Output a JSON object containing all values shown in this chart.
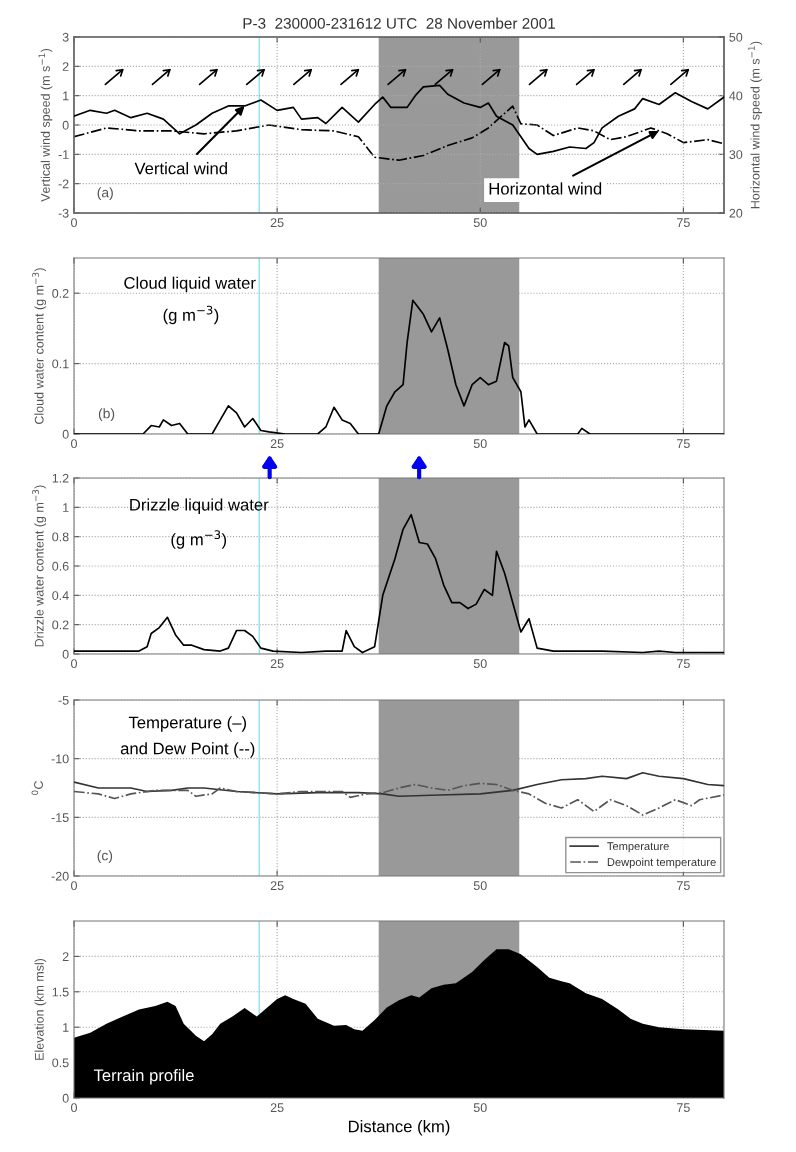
{
  "chart_data": [
    {
      "type": "line",
      "title": "P-3  230000-231612 UTC  28 November 2001",
      "ylabel": "Vertical wind speed (m s$^{−1}$)",
      "y2label": "Horizontal wind speed (m s$^{−1}$)",
      "xlim": [
        0,
        80
      ],
      "xticks": [
        0,
        25,
        50,
        75
      ],
      "ylim": [
        -3,
        3
      ],
      "yticks": [
        -3,
        -2,
        -1,
        0,
        1,
        2,
        3
      ],
      "y2lim": [
        20,
        50
      ],
      "y2ticks": [
        20,
        30,
        40,
        50
      ],
      "grid": true,
      "series": [
        {
          "color": "#000000",
          "line_style": "solid",
          "x": [
            0,
            2,
            4,
            5,
            7,
            9,
            11,
            13,
            15,
            17,
            19,
            21,
            23,
            25,
            27,
            28,
            30,
            31,
            33,
            35,
            37,
            38,
            39,
            41,
            42,
            43,
            45,
            46,
            48,
            50,
            51,
            52,
            54,
            56,
            57,
            59,
            61,
            63,
            64,
            65,
            67,
            69,
            70,
            72,
            74,
            76,
            78,
            80
          ],
          "values": [
            0.3,
            0.5,
            0.4,
            0.5,
            0.25,
            0.4,
            0.2,
            -0.3,
            0,
            0.4,
            0.65,
            0.65,
            0.85,
            0.5,
            0.6,
            0.2,
            0.25,
            0.05,
            0.6,
            0.1,
            0.7,
            0.95,
            0.6,
            0.6,
            1.0,
            1.3,
            1.35,
            1.05,
            0.75,
            0.6,
            0.75,
            0.3,
            0,
            -0.8,
            -1.0,
            -0.9,
            -0.75,
            -0.8,
            -0.6,
            -0.1,
            0.3,
            0.55,
            0.9,
            0.7,
            1.1,
            0.8,
            0.55,
            0.95
          ]
        },
        {
          "color": "#000000",
          "line_style": "dashdot",
          "axis": "y2",
          "x": [
            0,
            4,
            8,
            12,
            16,
            20,
            24,
            28,
            32,
            35,
            37,
            40,
            43,
            46,
            49,
            51,
            53,
            54,
            55,
            57,
            59,
            62,
            64,
            66,
            68,
            71,
            73,
            75,
            78,
            80
          ],
          "values": [
            33,
            34.5,
            34,
            34,
            33.5,
            34,
            35,
            34.2,
            34,
            33,
            29.5,
            29,
            29.8,
            31.5,
            32.8,
            34.5,
            37,
            38.2,
            35.2,
            35,
            33.2,
            34.5,
            34,
            32.5,
            33,
            34.5,
            33.5,
            32,
            32.5,
            31.8
          ]
        }
      ],
      "bands": [
        {
          "axis": "x",
          "from": 37.5,
          "to": 54.8,
          "color": "#999999"
        }
      ],
      "ref_lines": [
        {
          "axis": "x",
          "value": 22.8,
          "color": "#88e4f4"
        }
      ],
      "annotations": [
        {
          "text": "Vertical wind",
          "x": 21,
          "y": 0.65
        },
        {
          "text": "Horizontal wind",
          "x": 72,
          "y": -0.2
        },
        "(a)"
      ]
    },
    {
      "type": "line",
      "ylabel": "Cloud water content (g m$^{−3}$)",
      "xlim": [
        0,
        80
      ],
      "xticks": [
        0,
        25,
        50,
        75
      ],
      "ylim": [
        0,
        0.25
      ],
      "yticks": [
        0,
        0.1,
        0.2
      ],
      "grid": true,
      "series": [
        {
          "color": "#000000",
          "line_style": "solid",
          "x": [
            0,
            8.5,
            9.5,
            10.5,
            11,
            12,
            13,
            14,
            17,
            18,
            19,
            20,
            21,
            22,
            23,
            24,
            26,
            30,
            31,
            32,
            33,
            34,
            35,
            37.5,
            38.5,
            39.5,
            40.5,
            41,
            41.7,
            43,
            44,
            45,
            46,
            47,
            48,
            49,
            50,
            51,
            52,
            53,
            53.5,
            54,
            55,
            55.5,
            56,
            57,
            62,
            62.5,
            63.5,
            80
          ],
          "values": [
            0,
            0,
            0.012,
            0.01,
            0.02,
            0.012,
            0.015,
            0,
            0,
            0.02,
            0.04,
            0.03,
            0.01,
            0.022,
            0.005,
            0.003,
            0,
            0,
            0.01,
            0.038,
            0.02,
            0.015,
            0,
            0,
            0.04,
            0.06,
            0.07,
            0.13,
            0.19,
            0.17,
            0.145,
            0.165,
            0.12,
            0.07,
            0.04,
            0.07,
            0.08,
            0.07,
            0.075,
            0.13,
            0.125,
            0.08,
            0.06,
            0.01,
            0.02,
            0,
            0,
            0.008,
            0,
            0
          ]
        }
      ],
      "bands": [
        {
          "axis": "x",
          "from": 37.5,
          "to": 54.8,
          "color": "#999999"
        }
      ],
      "ref_lines": [
        {
          "axis": "x",
          "value": 22.8,
          "color": "#88e4f4"
        }
      ],
      "annotations": [
        "Cloud liquid water",
        "(g m$^{−3}$)",
        "(b)"
      ]
    },
    {
      "type": "line",
      "ylabel": "Drizzle water content (g m$^{−3}$)",
      "xlim": [
        0,
        80
      ],
      "xticks": [
        0,
        25,
        50,
        75
      ],
      "ylim": [
        0,
        1.2
      ],
      "yticks": [
        0,
        0.2,
        0.4,
        0.6,
        0.8,
        1,
        1.2
      ],
      "grid": true,
      "series": [
        {
          "color": "#000000",
          "line_style": "solid",
          "x": [
            0,
            8,
            9,
            9.5,
            10.5,
            11.5,
            12.5,
            13.5,
            14.5,
            16,
            18,
            19,
            20,
            21,
            22,
            23,
            24.5,
            28,
            31,
            33,
            33.5,
            34.5,
            35.5,
            37,
            38,
            39.5,
            40.5,
            41.5,
            42.5,
            43.5,
            44.5,
            45.5,
            46.5,
            47.5,
            48.5,
            49.5,
            50.5,
            51.5,
            52,
            53,
            54,
            55,
            56,
            57,
            59,
            65,
            70,
            72,
            74,
            80
          ],
          "values": [
            0.02,
            0.02,
            0.05,
            0.14,
            0.18,
            0.25,
            0.13,
            0.06,
            0.06,
            0.03,
            0.02,
            0.04,
            0.16,
            0.16,
            0.12,
            0.04,
            0.02,
            0.01,
            0.02,
            0.02,
            0.16,
            0.05,
            0.01,
            0.05,
            0.4,
            0.65,
            0.85,
            0.95,
            0.76,
            0.75,
            0.65,
            0.47,
            0.35,
            0.35,
            0.31,
            0.34,
            0.44,
            0.4,
            0.7,
            0.55,
            0.35,
            0.15,
            0.24,
            0.04,
            0.02,
            0.02,
            0.01,
            0.02,
            0.01,
            0.01
          ]
        }
      ],
      "bands": [
        {
          "axis": "x",
          "from": 37.5,
          "to": 54.8,
          "color": "#999999"
        }
      ],
      "ref_lines": [
        {
          "axis": "x",
          "value": 22.8,
          "color": "#88e4f4"
        }
      ],
      "annotations": [
        "Drizzle liquid water",
        "(g m$^{−3}$)"
      ]
    },
    {
      "type": "line",
      "ylabel": "$^{0}$C",
      "xlim": [
        0,
        80
      ],
      "xticks": [
        0,
        25,
        50,
        75
      ],
      "ylim": [
        -20,
        -5
      ],
      "yticks": [
        -20,
        -15,
        -10,
        -5
      ],
      "grid": true,
      "legend": "lower right",
      "series": [
        {
          "name": "Temperature",
          "color": "#333333",
          "line_style": "solid",
          "x": [
            0,
            3,
            7,
            9,
            12,
            14,
            16,
            20,
            25,
            30,
            35,
            38,
            40,
            45,
            50,
            54,
            57,
            60,
            63,
            65,
            68,
            70,
            72,
            75,
            78,
            80
          ],
          "values": [
            -12,
            -12.5,
            -12.5,
            -12.8,
            -12.7,
            -12.5,
            -12.5,
            -12.8,
            -13,
            -12.9,
            -12.9,
            -13,
            -13.2,
            -13.1,
            -13,
            -12.7,
            -12.2,
            -11.8,
            -11.7,
            -11.5,
            -11.7,
            -11.2,
            -11.5,
            -11.7,
            -12.2,
            -12.3
          ]
        },
        {
          "name": "Dewpoint temperature",
          "color": "#555555",
          "line_style": "dashdot",
          "x": [
            0,
            3,
            5,
            7,
            10,
            14,
            15,
            17,
            18,
            20,
            25,
            28,
            33,
            34,
            36,
            38,
            40,
            42,
            44,
            46,
            48,
            50,
            52,
            54,
            56,
            58,
            60,
            62,
            64,
            66,
            68,
            70,
            72,
            74,
            76,
            77,
            80
          ],
          "values": [
            -12.8,
            -13,
            -13.4,
            -13,
            -12.7,
            -12.7,
            -13.2,
            -13,
            -12.5,
            -12.8,
            -13,
            -12.8,
            -12.8,
            -13.3,
            -13,
            -12.9,
            -12.5,
            -12.2,
            -12.5,
            -12.7,
            -12.3,
            -12.1,
            -12.2,
            -12.7,
            -13,
            -13.8,
            -14.2,
            -13.5,
            -14.5,
            -13.5,
            -14,
            -14.8,
            -14.2,
            -13.5,
            -14,
            -13.5,
            -13.1
          ]
        }
      ],
      "bands": [
        {
          "axis": "x",
          "from": 37.5,
          "to": 54.8,
          "color": "#999999"
        }
      ],
      "ref_lines": [
        {
          "axis": "x",
          "value": 22.8,
          "color": "#88e4f4"
        }
      ],
      "annotations": [
        "Temperature (–)",
        "and Dew Point (--)",
        "(c)"
      ]
    },
    {
      "type": "area",
      "xlabel": "Distance (km)",
      "ylabel": "Elevation (km msl)",
      "xlim": [
        0,
        80
      ],
      "xticks": [
        0,
        25,
        50,
        75
      ],
      "ylim": [
        0,
        2.5
      ],
      "yticks": [
        0,
        0.5,
        1,
        1.5,
        2
      ],
      "grid": true,
      "series": [
        {
          "color": "#000000",
          "x": [
            0,
            2,
            4,
            6,
            8,
            10,
            11.5,
            12.5,
            13.5,
            15,
            16,
            17,
            18,
            19.5,
            21,
            22.5,
            23.5,
            25,
            26,
            27,
            28.5,
            30,
            32,
            33.5,
            34.5,
            35.5,
            37,
            38.5,
            40,
            41.5,
            42.5,
            44,
            45.5,
            47,
            49,
            50.5,
            52,
            53.5,
            55,
            57,
            58.5,
            60,
            61,
            63,
            65,
            67,
            68.5,
            70,
            72,
            75,
            80
          ],
          "values": [
            0.85,
            0.92,
            1.05,
            1.15,
            1.25,
            1.3,
            1.36,
            1.3,
            1.05,
            0.88,
            0.8,
            0.9,
            1.05,
            1.15,
            1.27,
            1.15,
            1.25,
            1.4,
            1.45,
            1.4,
            1.33,
            1.12,
            1.02,
            1.03,
            0.97,
            0.95,
            1.1,
            1.28,
            1.38,
            1.45,
            1.42,
            1.55,
            1.6,
            1.62,
            1.78,
            1.95,
            2.1,
            2.1,
            2.03,
            1.85,
            1.7,
            1.65,
            1.62,
            1.48,
            1.4,
            1.25,
            1.12,
            1.05,
            1.0,
            0.97,
            0.95
          ]
        }
      ],
      "bands": [
        {
          "axis": "x",
          "from": 37.5,
          "to": 54.8,
          "color": "#999999"
        }
      ],
      "ref_lines": [
        {
          "axis": "x",
          "value": 22.8,
          "color": "#88e4f4"
        }
      ],
      "annotations": [
        "Terrain profile"
      ]
    }
  ]
}
